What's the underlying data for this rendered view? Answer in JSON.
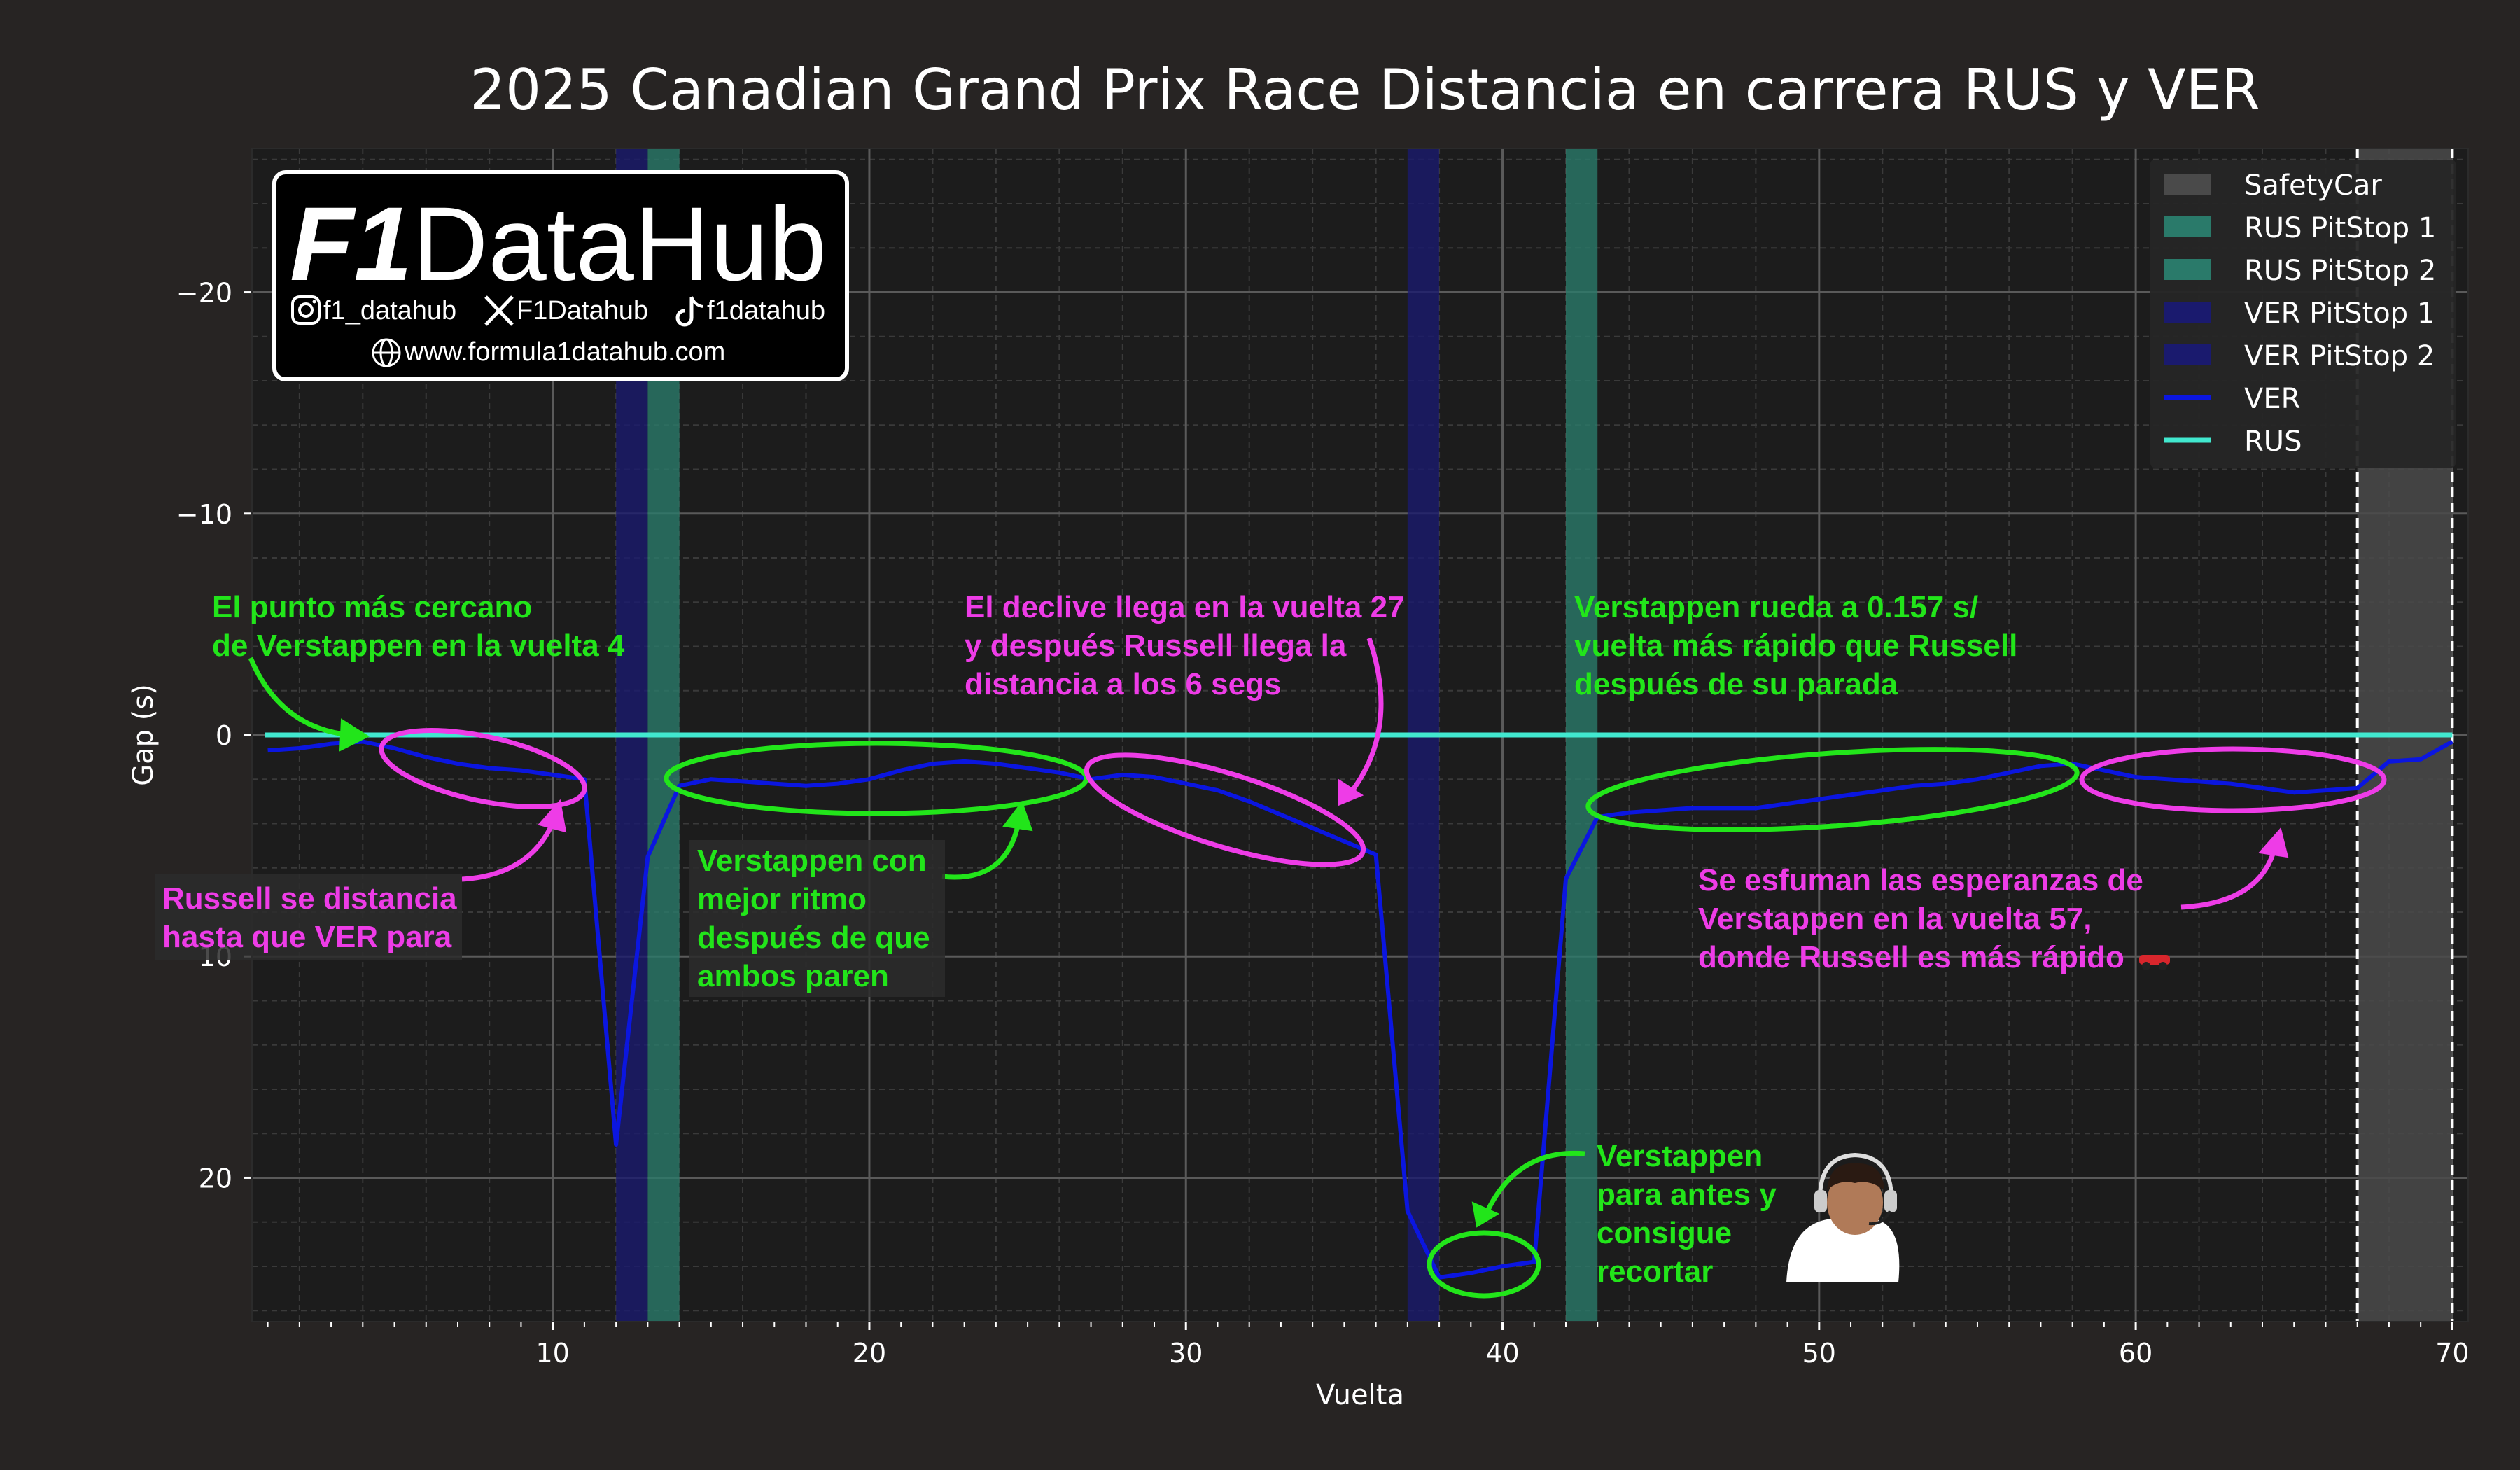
{
  "title": "2025 Canadian Grand Prix Race Distancia en carrera RUS y VER",
  "colors": {
    "background": "#272423",
    "plot_bg": "#1c1c1c",
    "grid_major": "#5a5a5a",
    "grid_minor": "#3a3a3a",
    "ver": "#0b16e0",
    "rus": "#41e8cf",
    "rus_pit": "#2a7a6a",
    "ver_pit": "#1a1a6e",
    "safety_car": "#4a4a4a",
    "ann_green": "#22e51a",
    "ann_magenta": "#ee3ce7"
  },
  "logo": {
    "brand_f1": "F1",
    "brand_rest": "DataHub",
    "instagram": "f1_datahub",
    "x": "F1Datahub",
    "tiktok": "f1datahub",
    "website": "www.formula1datahub.com",
    "icons": [
      "instagram-icon",
      "x-icon",
      "tiktok-icon",
      "globe-icon"
    ]
  },
  "chart_data": {
    "type": "line",
    "title": "2025 Canadian Grand Prix Race Distancia en carrera RUS y VER",
    "xlabel": "Vuelta",
    "ylabel": "Gap (s)",
    "xlim": [
      0.5,
      70.5
    ],
    "ylim": [
      26.5,
      -26.5
    ],
    "y_inverted": true,
    "xticks": [
      10,
      20,
      30,
      40,
      50,
      60,
      70
    ],
    "yticks": [
      -20,
      -10,
      0,
      10,
      20
    ],
    "ytick_labels": [
      "−20",
      "−10",
      "0",
      "10",
      "20"
    ],
    "grid": true,
    "legend_position": "top-right",
    "series": [
      {
        "name": "VER",
        "x": [
          1,
          2,
          3,
          4,
          5,
          6,
          7,
          8,
          9,
          10,
          11,
          12,
          13,
          14,
          15,
          16,
          17,
          18,
          19,
          20,
          21,
          22,
          23,
          24,
          25,
          26,
          27,
          28,
          29,
          30,
          31,
          32,
          33,
          34,
          35,
          36,
          37,
          38,
          39,
          40,
          41,
          42,
          43,
          44,
          45,
          46,
          47,
          48,
          49,
          50,
          51,
          52,
          53,
          54,
          55,
          56,
          57,
          58,
          59,
          60,
          61,
          62,
          63,
          64,
          65,
          66,
          67,
          68,
          69,
          70
        ],
        "y": [
          0.7,
          0.6,
          0.4,
          0.3,
          0.6,
          1.0,
          1.3,
          1.5,
          1.6,
          1.8,
          2.0,
          18.5,
          5.5,
          2.3,
          2.0,
          2.1,
          2.2,
          2.3,
          2.2,
          2.0,
          1.6,
          1.3,
          1.2,
          1.3,
          1.5,
          1.7,
          2.0,
          1.8,
          1.9,
          2.2,
          2.5,
          3.0,
          3.6,
          4.2,
          4.8,
          5.4,
          21.5,
          24.5,
          24.3,
          24.0,
          23.8,
          6.5,
          3.7,
          3.5,
          3.4,
          3.3,
          3.3,
          3.3,
          3.1,
          2.9,
          2.7,
          2.5,
          2.3,
          2.2,
          2.0,
          1.7,
          1.4,
          1.3,
          1.6,
          1.9,
          2.0,
          2.1,
          2.2,
          2.4,
          2.6,
          2.5,
          2.4,
          1.2,
          1.1,
          0.3
        ]
      },
      {
        "name": "RUS",
        "x": [
          1,
          70
        ],
        "y": [
          0,
          0
        ]
      }
    ],
    "shaded_regions": [
      {
        "name": "SafetyCar",
        "x0": 67,
        "x1": 70
      },
      {
        "name": "RUS PitStop 1",
        "x0": 13,
        "x1": 14
      },
      {
        "name": "RUS PitStop 2",
        "x0": 42,
        "x1": 43
      },
      {
        "name": "VER PitStop 1",
        "x0": 12,
        "x1": 13
      },
      {
        "name": "VER PitStop 2",
        "x0": 37,
        "x1": 38
      }
    ],
    "legend": [
      "SafetyCar",
      "RUS PitStop 1",
      "RUS PitStop 2",
      "VER PitStop 1",
      "VER PitStop 2",
      "VER",
      "RUS"
    ],
    "annotations": [
      {
        "color": "green",
        "lines": [
          "El punto más cercano",
          "de Verstappen en la vuelta 4"
        ]
      },
      {
        "color": "magenta",
        "lines": [
          "Russell se distancia",
          "hasta que VER para"
        ]
      },
      {
        "color": "green",
        "lines": [
          "Verstappen con",
          "mejor ritmo",
          "después de que",
          "ambos paren"
        ]
      },
      {
        "color": "magenta",
        "lines": [
          "El declive llega en la vuelta 27",
          "y después Russell llega la",
          "distancia a los 6 segs"
        ]
      },
      {
        "color": "green",
        "lines": [
          "Verstappen rueda a 0.157 s/",
          "vuelta más rápido que Russell",
          "después de su parada"
        ]
      },
      {
        "color": "green",
        "lines": [
          "Verstappen",
          "para antes y",
          "consigue",
          "recortar"
        ]
      },
      {
        "color": "magenta",
        "lines": [
          "Se esfuman las esperanzas de",
          "Verstappen en la vuelta 57,",
          "donde Russell es más rápido"
        ]
      }
    ]
  }
}
